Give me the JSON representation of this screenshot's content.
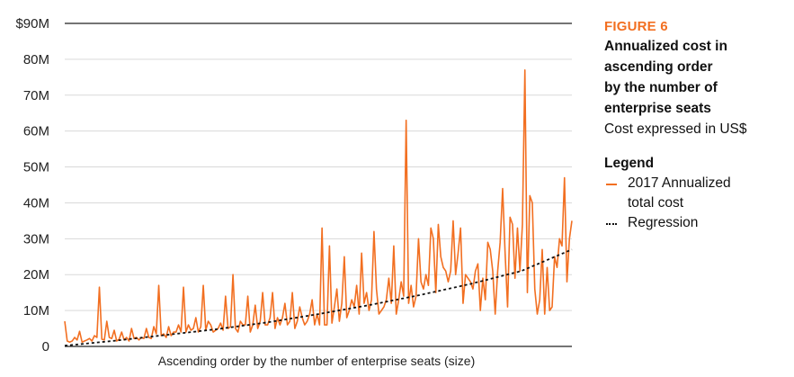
{
  "chart_data": {
    "type": "line",
    "xlabel": "Ascending order by the number of enterprise seats (size)",
    "ylabel": "",
    "ylim": [
      0,
      90
    ],
    "yticks": [
      {
        "value": 0,
        "label": "0"
      },
      {
        "value": 10,
        "label": "10M"
      },
      {
        "value": 20,
        "label": "20M"
      },
      {
        "value": 30,
        "label": "30M"
      },
      {
        "value": 40,
        "label": "40M"
      },
      {
        "value": 50,
        "label": "50M"
      },
      {
        "value": 60,
        "label": "60M"
      },
      {
        "value": 70,
        "label": "70M"
      },
      {
        "value": 80,
        "label": "80M"
      },
      {
        "value": 90,
        "label": "$90M"
      }
    ],
    "grid": true,
    "legend_position": "right",
    "series": [
      {
        "name": "2017 Annualized total cost",
        "color": "#f26f21",
        "style": "solid",
        "values": [
          7,
          1.5,
          1.2,
          1.5,
          2.5,
          1.8,
          4.2,
          1.2,
          1.5,
          1.8,
          2.2,
          1.5,
          3,
          2.5,
          16.5,
          2,
          1.8,
          7,
          2.5,
          2.2,
          4.5,
          1.5,
          2,
          4,
          1.8,
          2.5,
          1.5,
          5,
          2.2,
          2.5,
          1.8,
          2.5,
          2.2,
          5,
          2.5,
          2.2,
          5.5,
          3.5,
          17,
          3,
          3.5,
          2.5,
          5.5,
          3,
          4,
          4,
          6,
          4,
          16.5,
          4,
          6,
          4.5,
          5,
          8,
          4,
          5.5,
          17,
          4.5,
          7,
          6,
          4,
          4.5,
          5,
          6.5,
          4.5,
          14,
          5,
          5.5,
          20,
          5,
          4,
          7,
          6,
          6,
          14,
          4,
          6,
          11.5,
          5,
          7,
          15,
          6,
          6,
          8,
          15,
          5,
          8,
          6,
          8,
          12,
          6,
          7,
          15,
          5,
          7,
          11,
          8,
          6,
          7,
          9,
          13,
          6,
          9,
          6,
          33,
          6,
          6,
          28,
          6.5,
          11,
          16,
          7,
          12,
          25,
          8,
          10,
          13,
          11,
          17,
          9,
          26,
          12,
          15,
          10,
          13,
          32,
          16,
          9,
          10,
          11,
          13,
          19,
          12,
          28,
          9,
          13,
          18,
          14,
          63,
          12,
          17,
          11,
          14,
          30,
          18,
          16,
          20,
          17,
          33,
          30,
          15,
          34,
          25,
          22,
          21,
          18,
          21,
          35,
          20,
          26,
          33,
          12,
          20,
          19,
          18,
          16,
          21,
          23,
          10,
          19,
          13,
          29,
          27,
          21,
          9,
          21,
          29,
          44,
          26,
          11,
          36,
          34,
          19,
          33,
          21,
          34,
          77,
          15,
          42,
          40,
          16,
          9,
          13,
          27,
          9,
          22,
          10,
          11,
          25,
          22,
          30,
          28,
          47,
          18,
          30,
          35
        ],
        "_note": "values in $M"
      },
      {
        "name": "Regression",
        "color": "#111111",
        "style": "dotted",
        "x": [
          0,
          0.1,
          0.2,
          0.3,
          0.4,
          0.5,
          0.6,
          0.7,
          0.8,
          0.9,
          1.0
        ],
        "values": [
          0.2,
          1.6,
          3.2,
          4.8,
          6.7,
          9,
          11.5,
          14.3,
          17.4,
          21,
          27
        ]
      }
    ]
  },
  "sidebar": {
    "figure_label": "FIGURE 6",
    "title_lines": [
      "Annualized cost in",
      "ascending order",
      "by the number of",
      "enterprise seats"
    ],
    "subtitle": "Cost expressed in US$",
    "legend_title": "Legend",
    "legend_items": [
      {
        "label_lines": [
          "2017 Annualized",
          "total cost"
        ]
      },
      {
        "label_lines": [
          "Regression"
        ]
      }
    ]
  }
}
